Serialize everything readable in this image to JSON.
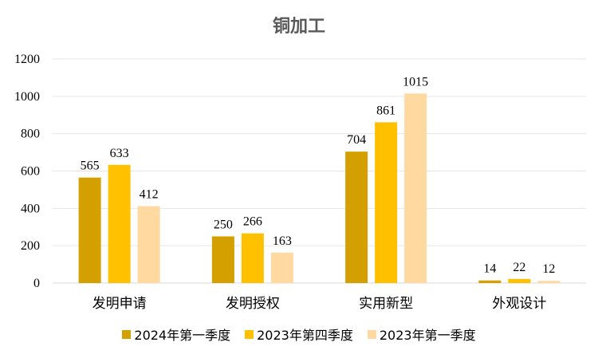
{
  "chart_data": {
    "type": "bar",
    "title": "铜加工",
    "categories": [
      "发明申请",
      "发明授权",
      "实用新型",
      "外观设计"
    ],
    "series": [
      {
        "name": "2024年第一季度",
        "color": "#D4A000",
        "values": [
          565,
          250,
          704,
          14
        ]
      },
      {
        "name": "2023年第四季度",
        "color": "#FFC000",
        "values": [
          633,
          266,
          861,
          22
        ]
      },
      {
        "name": "2023年第一季度",
        "color": "#FFD9A0",
        "values": [
          412,
          163,
          1015,
          12
        ]
      }
    ],
    "ylim": [
      0,
      1200
    ],
    "yticks": [
      0,
      200,
      400,
      600,
      800,
      1000,
      1200
    ],
    "grid": true,
    "legend_position": "bottom",
    "data_labels": true
  }
}
